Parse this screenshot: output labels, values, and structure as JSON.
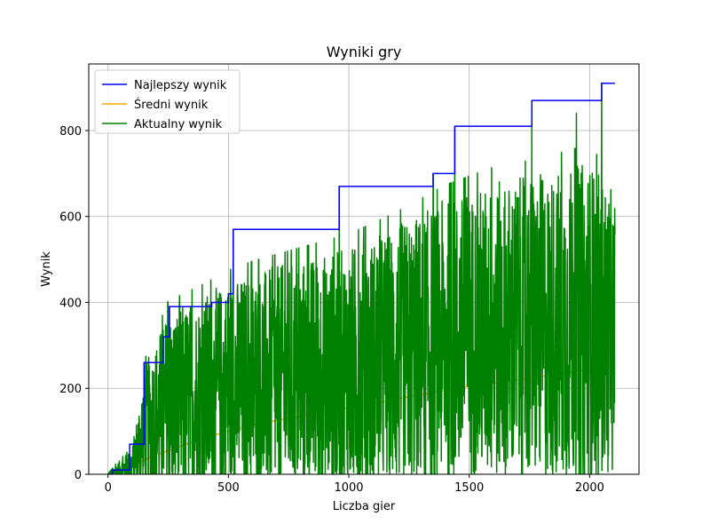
{
  "chart_data": {
    "type": "line",
    "title": "Wyniki gry",
    "xlabel": "Liczba gier",
    "ylabel": "Wynik",
    "xlim": [
      -80,
      2205
    ],
    "ylim": [
      0,
      955
    ],
    "xticks": [
      0,
      500,
      1000,
      1500,
      2000
    ],
    "yticks": [
      0,
      200,
      400,
      600,
      800
    ],
    "grid": true,
    "legend_position": "top-left",
    "series": [
      {
        "name": "Najlepszy wynik",
        "color": "#0000ff",
        "kind": "step",
        "x": [
          0,
          20,
          90,
          150,
          230,
          255,
          430,
          500,
          520,
          960,
          1350,
          1440,
          1760,
          2050,
          2105
        ],
        "y": [
          0,
          10,
          70,
          260,
          320,
          390,
          400,
          420,
          570,
          670,
          700,
          810,
          870,
          910,
          910
        ]
      },
      {
        "name": "Średni wynik",
        "color": "#ffa500",
        "kind": "line",
        "x": [
          0,
          100,
          200,
          300,
          400,
          500,
          600,
          700,
          800,
          900,
          1000,
          1100,
          1200,
          1300,
          1400,
          1500,
          1600,
          1700,
          1800,
          1900,
          2000,
          2100
        ],
        "y": [
          0,
          20,
          45,
          65,
          85,
          100,
          115,
          125,
          135,
          145,
          155,
          165,
          175,
          185,
          195,
          205,
          212,
          220,
          228,
          236,
          244,
          252
        ]
      },
      {
        "name": "Aktualny wynik",
        "color": "#008000",
        "kind": "noisy",
        "x_range": [
          0,
          2105
        ],
        "envelope": {
          "x": [
            0,
            100,
            150,
            250,
            400,
            500,
            600,
            800,
            1000,
            1200,
            1400,
            1600,
            1800,
            2000,
            2105
          ],
          "mean": [
            0,
            20,
            100,
            150,
            180,
            200,
            210,
            220,
            240,
            270,
            310,
            330,
            340,
            350,
            330
          ],
          "amp": [
            5,
            40,
            150,
            230,
            240,
            250,
            260,
            280,
            290,
            310,
            330,
            350,
            360,
            380,
            320
          ]
        },
        "peaks": [
          {
            "x": 150,
            "y": 260
          },
          {
            "x": 255,
            "y": 390
          },
          {
            "x": 430,
            "y": 400
          },
          {
            "x": 500,
            "y": 420
          },
          {
            "x": 520,
            "y": 570
          },
          {
            "x": 960,
            "y": 670
          },
          {
            "x": 1350,
            "y": 700
          },
          {
            "x": 1440,
            "y": 810
          },
          {
            "x": 1760,
            "y": 870
          },
          {
            "x": 1945,
            "y": 840
          },
          {
            "x": 2050,
            "y": 910
          }
        ]
      }
    ]
  }
}
